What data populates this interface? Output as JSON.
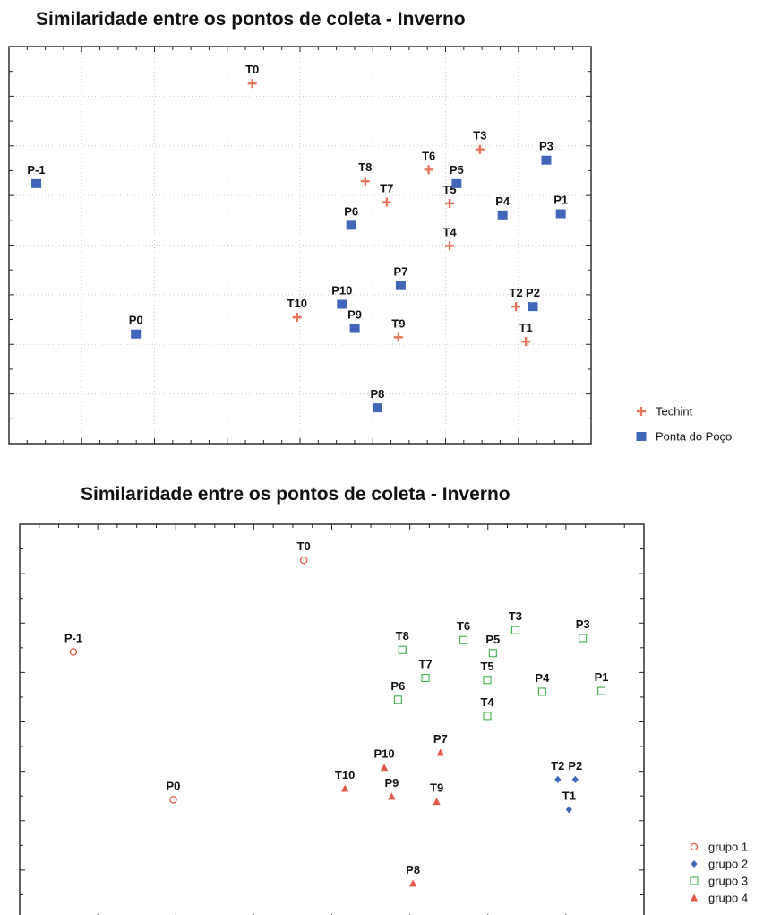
{
  "charts": [
    {
      "title": "Similaridade entre os pontos de coleta - Inverno",
      "legend": [
        {
          "key": "techint",
          "label": "Techint",
          "marker": "plus",
          "color": "#e8735a"
        },
        {
          "key": "ponta",
          "label": "Ponta do Poço",
          "marker": "square",
          "color": "#3f66b8"
        }
      ]
    },
    {
      "title": "Similaridade entre os pontos de coleta - Inverno",
      "legend": [
        {
          "key": "g1",
          "label": "grupo 1",
          "marker": "circle",
          "color": "#e05a48"
        },
        {
          "key": "g2",
          "label": "grupo 2",
          "marker": "diamond",
          "color": "#3f66b8"
        },
        {
          "key": "g3",
          "label": "grupo 3",
          "marker": "open-square",
          "color": "#3cb04a"
        },
        {
          "key": "g4",
          "label": "grupo 4",
          "marker": "triangle",
          "color": "#e05a48"
        }
      ]
    }
  ],
  "chart_data": [
    {
      "type": "scatter",
      "title": "Similaridade entre os pontos de coleta - Inverno",
      "xlim": [
        0,
        100
      ],
      "ylim": [
        0,
        100
      ],
      "grid": true,
      "legend_position": "right",
      "series": [
        {
          "name": "Techint",
          "points": [
            {
              "label": "T0",
              "x": 41.8,
              "y": 90.7
            },
            {
              "label": "T1",
              "x": 88.8,
              "y": 25.7
            },
            {
              "label": "T2",
              "x": 87.1,
              "y": 34.5
            },
            {
              "label": "T3",
              "x": 80.9,
              "y": 74.1
            },
            {
              "label": "T4",
              "x": 75.7,
              "y": 49.8
            },
            {
              "label": "T5",
              "x": 75.7,
              "y": 60.5
            },
            {
              "label": "T6",
              "x": 72.1,
              "y": 69.0
            },
            {
              "label": "T7",
              "x": 64.9,
              "y": 60.8
            },
            {
              "label": "T8",
              "x": 61.2,
              "y": 66.1
            },
            {
              "label": "T9",
              "x": 66.9,
              "y": 26.8
            },
            {
              "label": "T10",
              "x": 49.5,
              "y": 31.8
            }
          ]
        },
        {
          "name": "Ponta do Poço",
          "points": [
            {
              "label": "P-1",
              "x": 4.7,
              "y": 65.5
            },
            {
              "label": "P0",
              "x": 21.8,
              "y": 27.6
            },
            {
              "label": "P1",
              "x": 94.8,
              "y": 57.9
            },
            {
              "label": "P2",
              "x": 90.0,
              "y": 34.5
            },
            {
              "label": "P3",
              "x": 92.3,
              "y": 71.4
            },
            {
              "label": "P4",
              "x": 84.8,
              "y": 57.6
            },
            {
              "label": "P5",
              "x": 76.9,
              "y": 65.5
            },
            {
              "label": "P6",
              "x": 58.8,
              "y": 55.0
            },
            {
              "label": "P7",
              "x": 67.3,
              "y": 39.8
            },
            {
              "label": "P8",
              "x": 63.3,
              "y": 9.0
            },
            {
              "label": "P9",
              "x": 59.4,
              "y": 29.0
            },
            {
              "label": "P10",
              "x": 57.2,
              "y": 35.1
            }
          ]
        }
      ]
    },
    {
      "type": "scatter",
      "title": "Similaridade entre os pontos de coleta - Inverno",
      "xlim": [
        0,
        100
      ],
      "ylim": [
        0,
        100
      ],
      "grid": false,
      "legend_position": "right",
      "series": [
        {
          "name": "grupo 1",
          "points": [
            {
              "label": "T0",
              "x": 45.5,
              "y": 90.9
            },
            {
              "label": "P-1",
              "x": 8.6,
              "y": 67.7
            },
            {
              "label": "P0",
              "x": 24.6,
              "y": 30.3
            }
          ]
        },
        {
          "name": "grupo 2",
          "points": [
            {
              "label": "T1",
              "x": 88.0,
              "y": 27.8
            },
            {
              "label": "T2",
              "x": 86.2,
              "y": 35.4
            },
            {
              "label": "P2",
              "x": 89.0,
              "y": 35.4
            }
          ]
        },
        {
          "name": "grupo 3",
          "points": [
            {
              "label": "T3",
              "x": 79.4,
              "y": 73.2
            },
            {
              "label": "T4",
              "x": 74.9,
              "y": 51.5
            },
            {
              "label": "T5",
              "x": 74.9,
              "y": 60.6
            },
            {
              "label": "T6",
              "x": 71.1,
              "y": 70.7
            },
            {
              "label": "T7",
              "x": 65.0,
              "y": 61.1
            },
            {
              "label": "T8",
              "x": 61.3,
              "y": 68.2
            },
            {
              "label": "P1",
              "x": 93.2,
              "y": 57.8
            },
            {
              "label": "P3",
              "x": 90.2,
              "y": 71.2
            },
            {
              "label": "P4",
              "x": 83.7,
              "y": 57.6
            },
            {
              "label": "P5",
              "x": 75.8,
              "y": 67.4
            },
            {
              "label": "P6",
              "x": 60.6,
              "y": 55.6
            }
          ]
        },
        {
          "name": "grupo 4",
          "points": [
            {
              "label": "T9",
              "x": 66.8,
              "y": 29.8
            },
            {
              "label": "T10",
              "x": 52.1,
              "y": 33.1
            },
            {
              "label": "P7",
              "x": 67.4,
              "y": 42.2
            },
            {
              "label": "P8",
              "x": 63.0,
              "y": 9.1
            },
            {
              "label": "P9",
              "x": 59.6,
              "y": 31.1
            },
            {
              "label": "P10",
              "x": 58.4,
              "y": 38.4
            }
          ]
        }
      ]
    }
  ]
}
